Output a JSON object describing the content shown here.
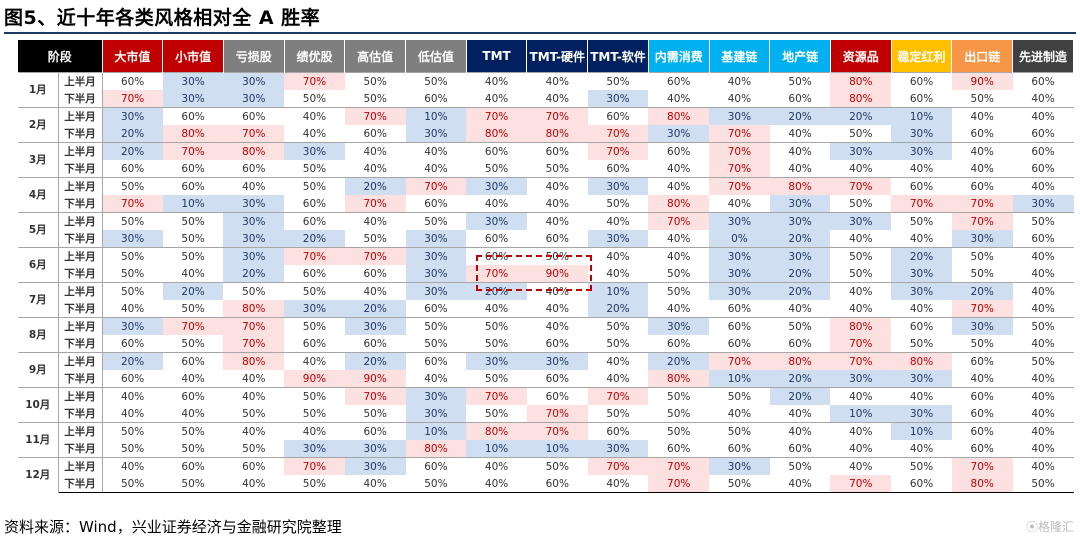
{
  "title": "图5、近十年各类风格相对全 A 胜率",
  "source": "资料来源：Wind，兴业证券经济与金融研究院整理",
  "watermark": "⦿格隆汇",
  "header_stage": "阶段",
  "columns": [
    {
      "label": "大市值",
      "bg": "#c00000"
    },
    {
      "label": "小市值",
      "bg": "#c00000"
    },
    {
      "label": "亏损股",
      "bg": "#7f7f7f"
    },
    {
      "label": "绩优股",
      "bg": "#7f7f7f"
    },
    {
      "label": "高估值",
      "bg": "#7f7f7f"
    },
    {
      "label": "低估值",
      "bg": "#7f7f7f"
    },
    {
      "label": "TMT",
      "bg": "#002060"
    },
    {
      "label": "TMT-硬件",
      "bg": "#002060"
    },
    {
      "label": "TMT-软件",
      "bg": "#002060"
    },
    {
      "label": "内需消费",
      "bg": "#00b0f0"
    },
    {
      "label": "基建链",
      "bg": "#00b0f0"
    },
    {
      "label": "地产链",
      "bg": "#00b0f0"
    },
    {
      "label": "资源品",
      "bg": "#c00000"
    },
    {
      "label": "稳定红利",
      "bg": "#ffc000"
    },
    {
      "label": "出口链",
      "bg": "#f79646"
    },
    {
      "label": "先进制造",
      "bg": "#404040"
    }
  ],
  "half_labels": [
    "上半月",
    "下半月"
  ],
  "months": [
    {
      "label": "1月",
      "rows": [
        [
          "60%",
          "30%",
          "30%",
          "70%",
          "50%",
          "50%",
          "40%",
          "40%",
          "50%",
          "60%",
          "40%",
          "50%",
          "80%",
          "60%",
          "90%",
          "60%"
        ],
        [
          "70%",
          "30%",
          "30%",
          "50%",
          "50%",
          "60%",
          "40%",
          "40%",
          "30%",
          "40%",
          "40%",
          "60%",
          "80%",
          "60%",
          "50%",
          "40%"
        ]
      ]
    },
    {
      "label": "2月",
      "rows": [
        [
          "30%",
          "60%",
          "60%",
          "40%",
          "70%",
          "10%",
          "70%",
          "70%",
          "60%",
          "80%",
          "30%",
          "20%",
          "20%",
          "10%",
          "40%",
          "40%"
        ],
        [
          "20%",
          "80%",
          "70%",
          "40%",
          "60%",
          "30%",
          "80%",
          "80%",
          "70%",
          "30%",
          "70%",
          "40%",
          "50%",
          "30%",
          "60%",
          "60%"
        ]
      ]
    },
    {
      "label": "3月",
      "rows": [
        [
          "20%",
          "70%",
          "80%",
          "30%",
          "40%",
          "40%",
          "60%",
          "60%",
          "70%",
          "60%",
          "70%",
          "40%",
          "30%",
          "30%",
          "40%",
          "60%"
        ],
        [
          "60%",
          "60%",
          "60%",
          "50%",
          "40%",
          "40%",
          "50%",
          "50%",
          "60%",
          "40%",
          "70%",
          "40%",
          "40%",
          "40%",
          "40%",
          "60%"
        ]
      ]
    },
    {
      "label": "4月",
      "rows": [
        [
          "50%",
          "60%",
          "40%",
          "50%",
          "20%",
          "70%",
          "30%",
          "40%",
          "30%",
          "40%",
          "70%",
          "80%",
          "70%",
          "60%",
          "60%",
          "40%"
        ],
        [
          "70%",
          "10%",
          "30%",
          "60%",
          "70%",
          "60%",
          "40%",
          "40%",
          "50%",
          "80%",
          "40%",
          "30%",
          "50%",
          "70%",
          "70%",
          "30%"
        ]
      ]
    },
    {
      "label": "5月",
      "rows": [
        [
          "50%",
          "50%",
          "30%",
          "60%",
          "40%",
          "50%",
          "30%",
          "40%",
          "40%",
          "70%",
          "30%",
          "30%",
          "30%",
          "50%",
          "70%",
          "50%"
        ],
        [
          "30%",
          "50%",
          "30%",
          "20%",
          "50%",
          "30%",
          "60%",
          "60%",
          "30%",
          "40%",
          "0%",
          "20%",
          "40%",
          "40%",
          "30%",
          "60%"
        ]
      ]
    },
    {
      "label": "6月",
      "rows": [
        [
          "50%",
          "50%",
          "30%",
          "70%",
          "70%",
          "30%",
          "60%",
          "50%",
          "40%",
          "40%",
          "30%",
          "30%",
          "50%",
          "20%",
          "50%",
          "40%"
        ],
        [
          "50%",
          "40%",
          "20%",
          "60%",
          "60%",
          "30%",
          "70%",
          "90%",
          "40%",
          "50%",
          "30%",
          "20%",
          "50%",
          "30%",
          "50%",
          "40%"
        ]
      ]
    },
    {
      "label": "7月",
      "rows": [
        [
          "50%",
          "20%",
          "50%",
          "50%",
          "40%",
          "30%",
          "20%",
          "40%",
          "10%",
          "50%",
          "30%",
          "20%",
          "40%",
          "30%",
          "20%",
          "40%"
        ],
        [
          "40%",
          "50%",
          "80%",
          "30%",
          "20%",
          "60%",
          "40%",
          "40%",
          "20%",
          "40%",
          "60%",
          "40%",
          "40%",
          "40%",
          "70%",
          "40%"
        ]
      ]
    },
    {
      "label": "8月",
      "rows": [
        [
          "30%",
          "70%",
          "70%",
          "50%",
          "30%",
          "50%",
          "50%",
          "40%",
          "50%",
          "30%",
          "60%",
          "50%",
          "80%",
          "60%",
          "30%",
          "50%"
        ],
        [
          "60%",
          "50%",
          "70%",
          "60%",
          "60%",
          "50%",
          "50%",
          "60%",
          "50%",
          "60%",
          "60%",
          "60%",
          "70%",
          "50%",
          "50%",
          "40%"
        ]
      ]
    },
    {
      "label": "9月",
      "rows": [
        [
          "20%",
          "60%",
          "80%",
          "40%",
          "20%",
          "60%",
          "30%",
          "30%",
          "40%",
          "20%",
          "70%",
          "80%",
          "70%",
          "80%",
          "60%",
          "50%"
        ],
        [
          "60%",
          "40%",
          "40%",
          "90%",
          "90%",
          "40%",
          "50%",
          "60%",
          "40%",
          "80%",
          "10%",
          "20%",
          "30%",
          "30%",
          "40%",
          "40%"
        ]
      ]
    },
    {
      "label": "10月",
      "rows": [
        [
          "40%",
          "60%",
          "40%",
          "50%",
          "70%",
          "30%",
          "70%",
          "60%",
          "70%",
          "50%",
          "50%",
          "20%",
          "40%",
          "40%",
          "60%",
          "40%"
        ],
        [
          "40%",
          "40%",
          "50%",
          "50%",
          "50%",
          "30%",
          "50%",
          "70%",
          "50%",
          "50%",
          "40%",
          "40%",
          "10%",
          "30%",
          "60%",
          "40%"
        ]
      ]
    },
    {
      "label": "11月",
      "rows": [
        [
          "50%",
          "50%",
          "40%",
          "40%",
          "60%",
          "10%",
          "80%",
          "70%",
          "60%",
          "50%",
          "50%",
          "40%",
          "40%",
          "10%",
          "60%",
          "40%"
        ],
        [
          "50%",
          "50%",
          "50%",
          "30%",
          "30%",
          "80%",
          "10%",
          "10%",
          "30%",
          "60%",
          "60%",
          "60%",
          "40%",
          "40%",
          "60%",
          "40%"
        ]
      ]
    },
    {
      "label": "12月",
      "rows": [
        [
          "40%",
          "60%",
          "60%",
          "70%",
          "30%",
          "60%",
          "40%",
          "50%",
          "70%",
          "70%",
          "30%",
          "50%",
          "40%",
          "50%",
          "70%",
          "40%"
        ],
        [
          "50%",
          "50%",
          "40%",
          "50%",
          "40%",
          "50%",
          "40%",
          "60%",
          "40%",
          "70%",
          "50%",
          "40%",
          "70%",
          "60%",
          "80%",
          "50%"
        ]
      ]
    }
  ],
  "highlight_red_threshold": 70,
  "highlight_blue_threshold": 30,
  "colors": {
    "red_fill": "#fde0e0",
    "blue_fill": "#cfdef1",
    "red_text": "#c00000",
    "blue_text": "#1f3864",
    "dash": "#c00000"
  }
}
